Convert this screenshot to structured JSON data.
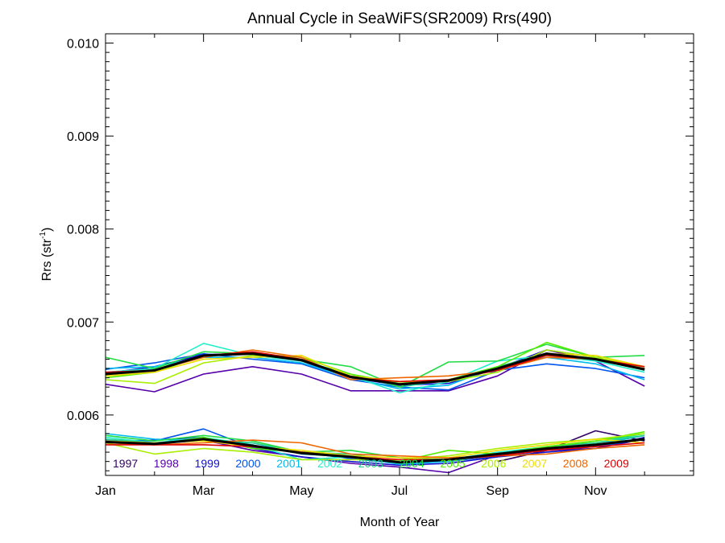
{
  "chart_data": {
    "type": "line",
    "title": "Annual Cycle in SeaWiFS(SR2009) Rrs(490)",
    "xlabel": "Month of Year",
    "ylabel": "Rrs (str",
    "ylabel_superscript": "-1",
    "ylabel_suffix": ")",
    "xlim": [
      0.5,
      12.5
    ],
    "ylim": [
      0.00535,
      0.0101
    ],
    "x_ticks": [
      {
        "value": 0.5,
        "label": "Jan"
      },
      {
        "value": 2.5,
        "label": "Mar"
      },
      {
        "value": 4.5,
        "label": "May"
      },
      {
        "value": 6.5,
        "label": "Jul"
      },
      {
        "value": 8.5,
        "label": "Sep"
      },
      {
        "value": 10.5,
        "label": "Nov"
      }
    ],
    "y_ticks": [
      {
        "value": 0.006,
        "label": "0.006"
      },
      {
        "value": 0.007,
        "label": "0.007"
      },
      {
        "value": 0.008,
        "label": "0.008"
      },
      {
        "value": 0.009,
        "label": "0.009"
      },
      {
        "value": 0.01,
        "label": "0.010"
      }
    ],
    "x": [
      0.5,
      1.5,
      2.5,
      3.5,
      4.5,
      5.5,
      6.5,
      7.5,
      8.5,
      9.5,
      10.5,
      11.5
    ],
    "legend_placement": "bottom inside plot",
    "series": [
      {
        "name": "1997",
        "color": "#330066",
        "values": [
          null,
          null,
          null,
          null,
          null,
          null,
          null,
          null,
          null,
          null,
          null,
          null
        ],
        "low": [
          null,
          null,
          null,
          null,
          null,
          null,
          null,
          null,
          0.0055,
          0.00562,
          0.00583,
          0.00572
        ]
      },
      {
        "name": "1998",
        "color": "#5500aa",
        "values": [
          0.00633,
          0.00625,
          0.00644,
          0.00652,
          0.00644,
          0.00626,
          0.00626,
          0.00626,
          0.00642,
          0.0067,
          0.00658,
          0.00631
        ],
        "low": [
          0.00572,
          0.00569,
          0.00573,
          0.00562,
          0.00555,
          0.00548,
          0.00544,
          0.00538,
          0.00557,
          0.00562,
          0.00564,
          0.00574
        ]
      },
      {
        "name": "1999",
        "color": "#1111cc",
        "values": [
          0.00645,
          0.00652,
          0.00665,
          0.00666,
          0.00658,
          0.0064,
          0.00632,
          0.00634,
          0.0065,
          0.0067,
          0.00662,
          0.0065
        ],
        "low": [
          0.0057,
          0.00573,
          0.00576,
          0.00564,
          0.00555,
          0.0055,
          0.00546,
          0.00548,
          0.00555,
          0.0056,
          0.00564,
          0.00576
        ]
      },
      {
        "name": "2000",
        "color": "#0055ee",
        "values": [
          0.00649,
          0.00656,
          0.00666,
          0.0066,
          0.00655,
          0.00638,
          0.0063,
          0.00627,
          0.00648,
          0.00655,
          0.0065,
          0.0064
        ],
        "low": [
          0.00573,
          0.00572,
          0.00585,
          0.00565,
          0.0056,
          0.00553,
          0.00548,
          0.0055,
          0.00556,
          0.00562,
          0.00566,
          0.00574
        ]
      },
      {
        "name": "2001",
        "color": "#00bbee",
        "values": [
          0.0065,
          0.00652,
          0.00662,
          0.00662,
          0.00656,
          0.0064,
          0.00628,
          0.00632,
          0.00652,
          0.00662,
          0.00655,
          0.00638
        ],
        "low": [
          0.0058,
          0.00574,
          0.00572,
          0.0057,
          0.00558,
          0.00555,
          0.00547,
          0.0055,
          0.00558,
          0.00564,
          0.00568,
          0.00578
        ]
      },
      {
        "name": "2002",
        "color": "#22eecc",
        "values": [
          0.00646,
          0.0065,
          0.00677,
          0.00664,
          0.00658,
          0.00642,
          0.00624,
          0.00636,
          0.00658,
          0.00664,
          0.00658,
          0.00646
        ],
        "low": [
          0.00576,
          0.0057,
          0.00576,
          0.00568,
          0.00552,
          0.00555,
          0.00548,
          0.00552,
          0.0056,
          0.00566,
          0.0057,
          0.0058
        ]
      },
      {
        "name": "2003",
        "color": "#22cc88",
        "values": [
          0.00644,
          0.00648,
          0.00664,
          0.00666,
          0.00658,
          0.00644,
          0.0063,
          0.00638,
          0.00652,
          0.00666,
          0.0066,
          0.00648
        ],
        "low": [
          0.00574,
          0.0057,
          0.00574,
          0.0057,
          0.0056,
          0.00558,
          0.0055,
          0.00552,
          0.00556,
          0.00566,
          0.0057,
          0.00578
        ]
      },
      {
        "name": "2004",
        "color": "#22dd44",
        "values": [
          0.00662,
          0.0065,
          0.00668,
          0.00666,
          0.0066,
          0.00652,
          0.0063,
          0.00657,
          0.00658,
          0.00676,
          0.00662,
          0.00664
        ],
        "low": [
          0.00578,
          0.00572,
          0.00578,
          0.00572,
          0.0056,
          0.00562,
          0.00554,
          0.00552,
          0.00558,
          0.00566,
          0.00572,
          0.0058
        ]
      },
      {
        "name": "2005",
        "color": "#55ee00",
        "values": [
          0.0064,
          0.00646,
          0.00664,
          0.00666,
          0.00662,
          0.00644,
          0.00634,
          0.00638,
          0.00652,
          0.00678,
          0.00662,
          0.0065
        ],
        "low": [
          0.00572,
          0.00568,
          0.00576,
          0.00564,
          0.0056,
          0.00556,
          0.0055,
          0.00562,
          0.00558,
          0.00566,
          0.00572,
          0.00582
        ]
      },
      {
        "name": "2006",
        "color": "#aaee00",
        "values": [
          0.00638,
          0.00634,
          0.00656,
          0.00664,
          0.0066,
          0.0064,
          0.00636,
          0.00636,
          0.00646,
          0.0067,
          0.00662,
          0.00652
        ],
        "low": [
          0.0057,
          0.00558,
          0.00564,
          0.0056,
          0.00552,
          0.00552,
          0.00552,
          0.00556,
          0.00564,
          0.0057,
          0.00574,
          0.0058
        ]
      },
      {
        "name": "2007",
        "color": "#eedd00",
        "values": [
          0.00642,
          0.00646,
          0.0066,
          0.00662,
          0.00664,
          0.00642,
          0.00636,
          0.00638,
          0.0065,
          0.00666,
          0.00664,
          0.00652
        ],
        "low": [
          0.00572,
          0.0057,
          0.00572,
          0.00566,
          0.00562,
          0.00556,
          0.00554,
          0.00554,
          0.00562,
          0.00568,
          0.00574,
          0.0057
        ]
      },
      {
        "name": "2008",
        "color": "#ee6600",
        "values": [
          0.00644,
          0.00648,
          0.00662,
          0.0067,
          0.00662,
          0.00638,
          0.0064,
          0.00642,
          0.00648,
          0.00662,
          0.0066,
          0.0065
        ],
        "low": [
          0.0057,
          0.00568,
          0.0057,
          0.00573,
          0.0057,
          0.00558,
          0.00556,
          0.00554,
          0.00556,
          0.00558,
          0.00564,
          0.00568
        ]
      },
      {
        "name": "2009",
        "color": "#dd0000",
        "values": [
          0.00646,
          0.00648,
          0.00664,
          0.00668,
          0.0066,
          0.0064,
          0.00636,
          0.00638,
          0.00648,
          0.00664,
          0.0066,
          0.00652
        ],
        "low": [
          0.00568,
          0.00568,
          0.00568,
          0.00566,
          0.0056,
          0.00555,
          0.00552,
          0.00552,
          0.00556,
          0.00562,
          0.00566,
          0.0057
        ]
      },
      {
        "name": "",
        "color": "#000000",
        "mean": true,
        "values": [
          0.00644,
          0.00648,
          0.00664,
          0.00666,
          0.00659,
          0.00641,
          0.00633,
          0.00637,
          0.0065,
          0.00666,
          0.0066,
          0.00649
        ],
        "low": [
          0.00571,
          0.00569,
          0.00574,
          0.00567,
          0.00559,
          0.00555,
          0.00549,
          0.00552,
          0.00558,
          0.00564,
          0.00568,
          0.00574
        ]
      }
    ]
  }
}
